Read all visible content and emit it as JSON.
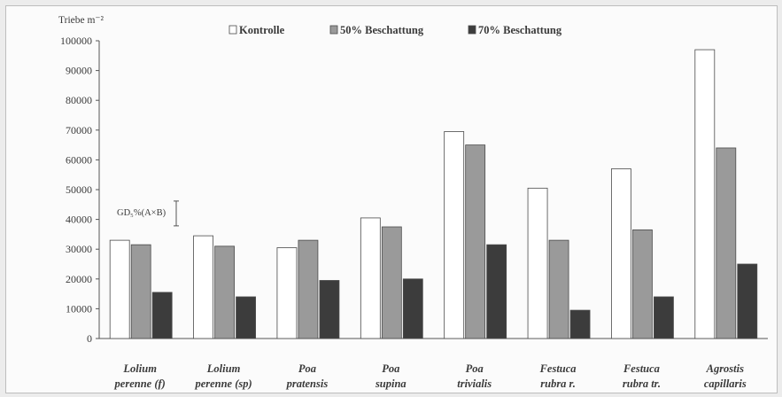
{
  "chart_data": {
    "type": "bar",
    "ylabel": "Triebe m⁻²",
    "ylim": [
      0,
      100000
    ],
    "yticks": [
      0,
      10000,
      20000,
      30000,
      40000,
      50000,
      60000,
      70000,
      80000,
      90000,
      100000
    ],
    "categories": [
      [
        "Lolium",
        "perenne (f)"
      ],
      [
        "Lolium",
        "perenne (sp)"
      ],
      [
        "Poa",
        "pratensis"
      ],
      [
        "Poa",
        "supina"
      ],
      [
        "Poa",
        "trivialis"
      ],
      [
        "Festuca",
        "rubra r."
      ],
      [
        "Festuca",
        "rubra tr."
      ],
      [
        "Agrostis",
        "capillaris"
      ]
    ],
    "series": [
      {
        "name": "Kontrolle",
        "color": "#ffffff",
        "values": [
          33000,
          34500,
          30500,
          40500,
          69500,
          50500,
          57000,
          97000
        ]
      },
      {
        "name": "50% Beschattung",
        "color": "#9a9a9a",
        "values": [
          31500,
          31000,
          33000,
          37500,
          65000,
          33000,
          36500,
          64000
        ]
      },
      {
        "name": "70% Beschattung",
        "color": "#3c3c3c",
        "values": [
          15500,
          14000,
          19500,
          20000,
          31500,
          9500,
          14000,
          25000
        ]
      }
    ],
    "annotation": {
      "text": "GD₅%(A×B)",
      "value": 42000
    },
    "legend": "top",
    "grid": false
  }
}
